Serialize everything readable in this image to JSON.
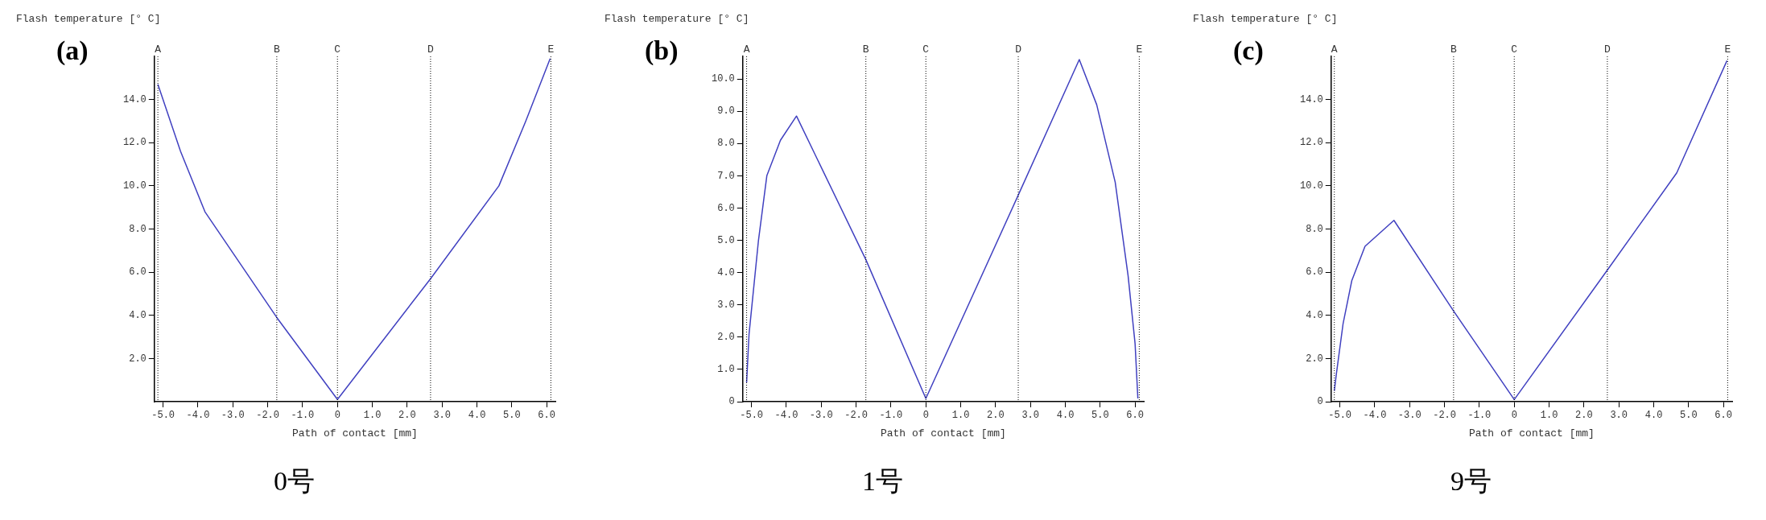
{
  "chart_data": [
    {
      "type": "line",
      "title": "(a)",
      "ylabel": "Flash temperature [° C]",
      "xlabel": "Path of contact [mm]",
      "annotations": [
        "0号"
      ],
      "marker": "none",
      "line_style": "solid",
      "grid": false,
      "legend": false,
      "xlim": [
        -5.25,
        6.25
      ],
      "ylim": [
        0,
        16
      ],
      "xticks": [
        {
          "value": -5,
          "label": "-5.0"
        },
        {
          "value": -4,
          "label": "-4.0"
        },
        {
          "value": -3,
          "label": "-3.0"
        },
        {
          "value": -2,
          "label": "-2.0"
        },
        {
          "value": -1,
          "label": "-1.0"
        },
        {
          "value": 0,
          "label": "0"
        },
        {
          "value": 1,
          "label": "1.0"
        },
        {
          "value": 2,
          "label": "2.0"
        },
        {
          "value": 3,
          "label": "3.0"
        },
        {
          "value": 4,
          "label": "4.0"
        },
        {
          "value": 5,
          "label": "5.0"
        },
        {
          "value": 6,
          "label": "6.0"
        }
      ],
      "yticks": [
        {
          "value": 2,
          "label": "2.0"
        },
        {
          "value": 4,
          "label": "4.0"
        },
        {
          "value": 6,
          "label": "6.0"
        },
        {
          "value": 8,
          "label": "8.0"
        },
        {
          "value": 10,
          "label": "10.0"
        },
        {
          "value": 12,
          "label": "12.0"
        },
        {
          "value": 14,
          "label": "14.0"
        }
      ],
      "ref_lines": [
        {
          "axis": "x",
          "value": -5.15,
          "label": "A",
          "color": "#000000",
          "line_style": "dotted"
        },
        {
          "axis": "x",
          "value": -1.74,
          "label": "B",
          "color": "#000000",
          "line_style": "dotted"
        },
        {
          "axis": "x",
          "value": 0,
          "label": "C",
          "color": "#000000",
          "line_style": "dotted"
        },
        {
          "axis": "x",
          "value": 2.67,
          "label": "D",
          "color": "#000000",
          "line_style": "dotted"
        },
        {
          "axis": "x",
          "value": 6.12,
          "label": "E",
          "color": "#000000",
          "line_style": "dotted"
        }
      ],
      "series": [
        {
          "color": "#4040c0",
          "x": [
            -5.15,
            -4.5,
            -3.8,
            -1.74,
            0,
            2.67,
            4.63,
            5.4,
            6.1
          ],
          "values": [
            14.7,
            11.6,
            8.8,
            3.9,
            0.1,
            5.7,
            10.0,
            13.0,
            15.9
          ]
        }
      ]
    },
    {
      "type": "line",
      "title": "(b)",
      "ylabel": "Flash temperature [° C]",
      "xlabel": "Path of contact [mm]",
      "annotations": [
        "1号"
      ],
      "marker": "none",
      "line_style": "solid",
      "grid": false,
      "legend": false,
      "xlim": [
        -5.25,
        6.25
      ],
      "ylim": [
        0,
        10.7
      ],
      "xticks": [
        {
          "value": -5,
          "label": "-5.0"
        },
        {
          "value": -4,
          "label": "-4.0"
        },
        {
          "value": -3,
          "label": "-3.0"
        },
        {
          "value": -2,
          "label": "-2.0"
        },
        {
          "value": -1,
          "label": "-1.0"
        },
        {
          "value": 0,
          "label": "0"
        },
        {
          "value": 1,
          "label": "1.0"
        },
        {
          "value": 2,
          "label": "2.0"
        },
        {
          "value": 3,
          "label": "3.0"
        },
        {
          "value": 4,
          "label": "4.0"
        },
        {
          "value": 5,
          "label": "5.0"
        },
        {
          "value": 6,
          "label": "6.0"
        }
      ],
      "yticks": [
        0,
        {
          "value": 1,
          "label": "1.0"
        },
        {
          "value": 2,
          "label": "2.0"
        },
        {
          "value": 3,
          "label": "3.0"
        },
        {
          "value": 4,
          "label": "4.0"
        },
        {
          "value": 5,
          "label": "5.0"
        },
        {
          "value": 6,
          "label": "6.0"
        },
        {
          "value": 7,
          "label": "7.0"
        },
        {
          "value": 8,
          "label": "8.0"
        },
        {
          "value": 9,
          "label": "9.0"
        },
        {
          "value": 10,
          "label": "10.0"
        }
      ],
      "ref_lines": [
        {
          "axis": "x",
          "value": -5.14,
          "label": "A",
          "color": "#000000",
          "line_style": "dotted"
        },
        {
          "axis": "x",
          "value": -1.72,
          "label": "B",
          "color": "#000000",
          "line_style": "dotted"
        },
        {
          "axis": "x",
          "value": 0,
          "label": "C",
          "color": "#000000",
          "line_style": "dotted"
        },
        {
          "axis": "x",
          "value": 2.65,
          "label": "D",
          "color": "#000000",
          "line_style": "dotted"
        },
        {
          "axis": "x",
          "value": 6.12,
          "label": "E",
          "color": "#000000",
          "line_style": "dotted"
        }
      ],
      "series": [
        {
          "color": "#4040c0",
          "x": [
            -5.14,
            -5.07,
            -4.8,
            -4.56,
            -4.17,
            -3.71,
            -1.72,
            0,
            2.65,
            4.4,
            4.9,
            5.43,
            5.8,
            6.0,
            6.08
          ],
          "values": [
            0.6,
            2.1,
            5.0,
            7.0,
            8.1,
            8.85,
            4.4,
            0.1,
            6.4,
            10.6,
            9.2,
            6.8,
            3.9,
            1.8,
            0.1
          ]
        }
      ]
    },
    {
      "type": "line",
      "title": "(c)",
      "ylabel": "Flash temperature [° C]",
      "xlabel": "Path of contact [mm]",
      "annotations": [
        "9号"
      ],
      "marker": "none",
      "line_style": "solid",
      "grid": false,
      "legend": false,
      "xlim": [
        -5.25,
        6.25
      ],
      "ylim": [
        0,
        16
      ],
      "xticks": [
        {
          "value": -5,
          "label": "-5.0"
        },
        {
          "value": -4,
          "label": "-4.0"
        },
        {
          "value": -3,
          "label": "-3.0"
        },
        {
          "value": -2,
          "label": "-2.0"
        },
        {
          "value": -1,
          "label": "-1.0"
        },
        {
          "value": 0,
          "label": "0"
        },
        {
          "value": 1,
          "label": "1.0"
        },
        {
          "value": 2,
          "label": "2.0"
        },
        {
          "value": 3,
          "label": "3.0"
        },
        {
          "value": 4,
          "label": "4.0"
        },
        {
          "value": 5,
          "label": "5.0"
        },
        {
          "value": 6,
          "label": "6.0"
        }
      ],
      "yticks": [
        0,
        {
          "value": 2,
          "label": "2.0"
        },
        {
          "value": 4,
          "label": "4.0"
        },
        {
          "value": 6,
          "label": "6.0"
        },
        {
          "value": 8,
          "label": "8.0"
        },
        {
          "value": 10,
          "label": "10.0"
        },
        {
          "value": 12,
          "label": "12.0"
        },
        {
          "value": 14,
          "label": "14.0"
        }
      ],
      "ref_lines": [
        {
          "axis": "x",
          "value": -5.16,
          "label": "A",
          "color": "#000000",
          "line_style": "dotted"
        },
        {
          "axis": "x",
          "value": -1.74,
          "label": "B",
          "color": "#000000",
          "line_style": "dotted"
        },
        {
          "axis": "x",
          "value": 0,
          "label": "C",
          "color": "#000000",
          "line_style": "dotted"
        },
        {
          "axis": "x",
          "value": 2.67,
          "label": "D",
          "color": "#000000",
          "line_style": "dotted"
        },
        {
          "axis": "x",
          "value": 6.12,
          "label": "E",
          "color": "#000000",
          "line_style": "dotted"
        }
      ],
      "series": [
        {
          "color": "#4040c0",
          "x": [
            -5.16,
            -5.1,
            -4.91,
            -4.66,
            -4.28,
            -3.45,
            -1.74,
            0,
            2.67,
            4.66,
            6.1
          ],
          "values": [
            0.5,
            1.3,
            3.6,
            5.6,
            7.2,
            8.4,
            4.2,
            0.1,
            6.1,
            10.6,
            15.8
          ]
        }
      ]
    }
  ]
}
